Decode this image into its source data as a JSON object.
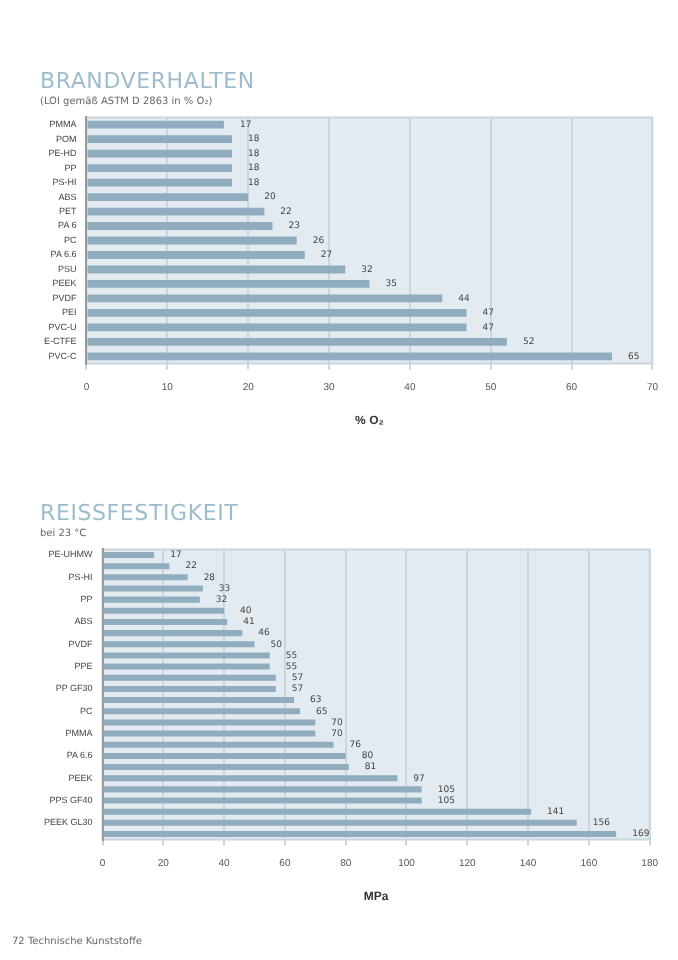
{
  "chart_data": [
    {
      "type": "bar",
      "orientation": "horizontal",
      "title": "BRANDVERHALTEN",
      "subtitle": "(LOI gemäß ASTM D 2863 in % O₂)",
      "xlabel": "% O₂",
      "categories": [
        "PMMA",
        "POM",
        "PE-HD",
        "PP",
        "PS-HI",
        "ABS",
        "PET",
        "PA 6",
        "PC",
        "PA 6.6",
        "PSU",
        "PEEK",
        "PVDF",
        "PEI",
        "PVC-U",
        "E-CTFE",
        "PVC-C"
      ],
      "values": [
        17,
        18,
        18,
        18,
        18,
        20,
        22,
        23,
        26,
        27,
        32,
        35,
        44,
        47,
        47,
        52,
        65
      ],
      "color": "#8fadbf",
      "xlim": [
        0,
        70
      ],
      "xticks": [
        0,
        10,
        20,
        30,
        40,
        50,
        60,
        70
      ],
      "grid": "x",
      "data_labels": true
    },
    {
      "type": "bar",
      "orientation": "horizontal",
      "title": "REISSFESTIGKEIT",
      "subtitle": "bei 23 °C",
      "xlabel": "MPa",
      "categories": [
        "PE-UHMW",
        null,
        "PS-HI",
        null,
        "PP",
        null,
        "ABS",
        null,
        "PVDF",
        null,
        "PPE",
        null,
        "PP GF30",
        null,
        "PC",
        null,
        "PMMA",
        null,
        "PA 6.6",
        null,
        "PEEK",
        null,
        "PPS GF40",
        null,
        "PEEK GL30",
        null
      ],
      "values": [
        17,
        22,
        28,
        33,
        32,
        40,
        41,
        46,
        50,
        55,
        55,
        57,
        57,
        63,
        65,
        70,
        70,
        76,
        80,
        81,
        97,
        105,
        105,
        141,
        156,
        169
      ],
      "color": "#8fadbf",
      "xlim": [
        0,
        180
      ],
      "xticks": [
        0,
        20,
        40,
        60,
        80,
        100,
        120,
        140,
        160,
        180
      ],
      "grid": "x",
      "data_labels": true,
      "annotations": [
        "72 Technische Kunststoffe"
      ]
    }
  ]
}
